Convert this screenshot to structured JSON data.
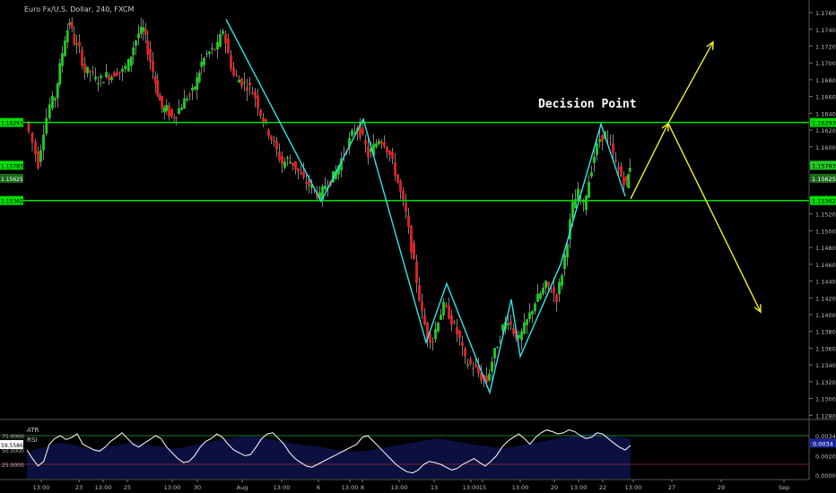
{
  "header": {
    "title": "Euro Fx/U.S. Dollar, 240, FXCM"
  },
  "colors": {
    "background": "#000000",
    "up": "#22cc22",
    "down": "#e02424",
    "level_line": "#00e000",
    "zigzag": "#2ee6e6",
    "arrow": "#f0f020",
    "rsi_line": "#ffffff",
    "atr_fill": "#0b1040",
    "axis_text": "#bbbbbb"
  },
  "annotations": {
    "decision_point": "Decision Point"
  },
  "chart_data": [
    {
      "type": "candlestick",
      "title": "Euro Fx/U.S. Dollar, 240, FXCM",
      "ylim": [
        1.1275,
        1.1775
      ],
      "y_ticks": [
        "1.17600",
        "1.17400",
        "1.17200",
        "1.17000",
        "1.16800",
        "1.16600",
        "1.16400",
        "1.16200",
        "1.16000",
        "1.15800",
        "1.15600",
        "1.15400",
        "1.15200",
        "1.15000",
        "1.14800",
        "1.14600",
        "1.14400",
        "1.14200",
        "1.14000",
        "1.13800",
        "1.13600",
        "1.13400",
        "1.13200",
        "1.13000",
        "1.12800"
      ],
      "x_ticks": [
        "13:00",
        "23",
        "13:00",
        "25",
        "13:00",
        "30",
        "Aug",
        "13:00",
        "6",
        "13:00",
        "8",
        "13:00",
        "13",
        "13:00",
        "15",
        "13:00",
        "20",
        "13:00",
        "22",
        "13:00",
        "27",
        "29",
        "Sep"
      ],
      "levels": [
        {
          "name": "upper",
          "value": 1.1629,
          "label": "1.16293"
        },
        {
          "name": "lower",
          "value": 1.1536,
          "label": "1.15362"
        }
      ],
      "price_badges": [
        {
          "label": "1.15783",
          "color": "#22cc22"
        },
        {
          "label": "1.15625",
          "color": "#22cc22"
        }
      ],
      "left_badges": [
        "1.16293",
        "1.15783",
        "1.15625",
        "1.15362"
      ],
      "zigzag": [
        [
          252,
          1.1752
        ],
        [
          358,
          1.1535
        ],
        [
          405,
          1.1633
        ],
        [
          475,
          1.1367
        ],
        [
          498,
          1.1437
        ],
        [
          546,
          1.1307
        ],
        [
          570,
          1.1418
        ],
        [
          580,
          1.135
        ],
        [
          625,
          1.146
        ],
        [
          670,
          1.1627
        ],
        [
          697,
          1.1541
        ]
      ],
      "arrows": [
        {
          "from": [
            703,
            1.1538
          ],
          "via": [
            745,
            1.1628
          ],
          "to": [
            795,
            1.1725
          ]
        },
        {
          "from": [
            745,
            1.1628
          ],
          "to": [
            848,
            1.1403
          ]
        }
      ],
      "series": [
        {
          "name": "path",
          "points": [
            [
              30,
              1.163
            ],
            [
              38,
              1.1605
            ],
            [
              44,
              1.158
            ],
            [
              50,
              1.162
            ],
            [
              57,
              1.165
            ],
            [
              63,
              1.166
            ],
            [
              68,
              1.1695
            ],
            [
              74,
              1.173
            ],
            [
              79,
              1.175
            ],
            [
              84,
              1.1725
            ],
            [
              90,
              1.1715
            ],
            [
              96,
              1.169
            ],
            [
              102,
              1.169
            ],
            [
              108,
              1.168
            ],
            [
              114,
              1.168
            ],
            [
              120,
              1.1685
            ],
            [
              126,
              1.1685
            ],
            [
              132,
              1.169
            ],
            [
              138,
              1.169
            ],
            [
              145,
              1.17
            ],
            [
              150,
              1.172
            ],
            [
              156,
              1.1735
            ],
            [
              161,
              1.174
            ],
            [
              166,
              1.1715
            ],
            [
              172,
              1.169
            ],
            [
              177,
              1.1665
            ],
            [
              182,
              1.1645
            ],
            [
              187,
              1.1645
            ],
            [
              193,
              1.1635
            ],
            [
              198,
              1.164
            ],
            [
              204,
              1.165
            ],
            [
              210,
              1.166
            ],
            [
              216,
              1.1665
            ],
            [
              221,
              1.168
            ],
            [
              226,
              1.17
            ],
            [
              232,
              1.171
            ],
            [
              238,
              1.1715
            ],
            [
              244,
              1.172
            ],
            [
              250,
              1.174
            ],
            [
              256,
              1.171
            ],
            [
              262,
              1.1685
            ],
            [
              268,
              1.168
            ],
            [
              274,
              1.1675
            ],
            [
              280,
              1.167
            ],
            [
              286,
              1.166
            ],
            [
              292,
              1.164
            ],
            [
              298,
              1.1625
            ],
            [
              304,
              1.161
            ],
            [
              310,
              1.1595
            ],
            [
              316,
              1.158
            ],
            [
              322,
              1.1585
            ],
            [
              328,
              1.158
            ],
            [
              334,
              1.157
            ],
            [
              340,
              1.156
            ],
            [
              346,
              1.1555
            ],
            [
              352,
              1.1548
            ],
            [
              358,
              1.154
            ],
            [
              364,
              1.1555
            ],
            [
              370,
              1.156
            ],
            [
              376,
              1.157
            ],
            [
              382,
              1.1585
            ],
            [
              388,
              1.16
            ],
            [
              394,
              1.1615
            ],
            [
              400,
              1.1625
            ],
            [
              406,
              1.161
            ],
            [
              412,
              1.159
            ],
            [
              418,
              1.16
            ],
            [
              424,
              1.161
            ],
            [
              430,
              1.1605
            ],
            [
              436,
              1.159
            ],
            [
              442,
              1.157
            ],
            [
              448,
              1.1545
            ],
            [
              454,
              1.152
            ],
            [
              460,
              1.148
            ],
            [
              466,
              1.144
            ],
            [
              472,
              1.14
            ],
            [
              478,
              1.1375
            ],
            [
              484,
              1.137
            ],
            [
              490,
              1.1395
            ],
            [
              496,
              1.141
            ],
            [
              502,
              1.14
            ],
            [
              508,
              1.1385
            ],
            [
              514,
              1.137
            ],
            [
              520,
              1.1345
            ],
            [
              526,
              1.134
            ],
            [
              532,
              1.1335
            ],
            [
              538,
              1.1325
            ],
            [
              544,
              1.132
            ],
            [
              550,
              1.1345
            ],
            [
              556,
              1.1365
            ],
            [
              562,
              1.1385
            ],
            [
              568,
              1.1395
            ],
            [
              574,
              1.138
            ],
            [
              580,
              1.137
            ],
            [
              586,
              1.1385
            ],
            [
              592,
              1.14
            ],
            [
              598,
              1.1415
            ],
            [
              604,
              1.1425
            ],
            [
              610,
              1.1435
            ],
            [
              616,
              1.143
            ],
            [
              622,
              1.142
            ],
            [
              628,
              1.145
            ],
            [
              634,
              1.149
            ],
            [
              640,
              1.153
            ],
            [
              646,
              1.1545
            ],
            [
              652,
              1.153
            ],
            [
              658,
              1.156
            ],
            [
              664,
              1.159
            ],
            [
              670,
              1.161
            ],
            [
              676,
              1.1615
            ],
            [
              682,
              1.16
            ],
            [
              688,
              1.158
            ],
            [
              694,
              1.1565
            ],
            [
              700,
              1.1555
            ],
            [
              703,
              1.1578
            ]
          ]
        }
      ]
    },
    {
      "type": "line",
      "title": "",
      "legend": [
        "ATR",
        "RSI"
      ],
      "y_ticks": [
        "75.0000",
        "50.0000",
        "25.0000"
      ],
      "right_ticks": [
        "0.0034",
        "0.0020",
        "0.0000"
      ],
      "badges": [
        {
          "label": "59.5586"
        },
        {
          "label": "0.0034"
        }
      ],
      "levels": [
        75,
        25
      ],
      "ylim": [
        0,
        100
      ],
      "series": [
        {
          "name": "RSI",
          "values": [
            50,
            35,
            22,
            30,
            60,
            70,
            75,
            68,
            72,
            78,
            60,
            55,
            50,
            48,
            55,
            65,
            72,
            80,
            70,
            60,
            55,
            62,
            68,
            75,
            70,
            55,
            45,
            35,
            28,
            30,
            40,
            55,
            65,
            70,
            78,
            72,
            60,
            50,
            45,
            40,
            42,
            55,
            70,
            78,
            80,
            70,
            60,
            45,
            35,
            28,
            22,
            20,
            25,
            30,
            35,
            40,
            45,
            50,
            55,
            60,
            72,
            75,
            65,
            55,
            45,
            35,
            25,
            18,
            12,
            10,
            15,
            25,
            30,
            28,
            25,
            20,
            15,
            18,
            25,
            30,
            35,
            28,
            22,
            30,
            40,
            55,
            65,
            72,
            78,
            70,
            60,
            72,
            80,
            85,
            82,
            78,
            80,
            85,
            82,
            75,
            70,
            72,
            80,
            78,
            70,
            62,
            55,
            50,
            58
          ]
        },
        {
          "name": "ATR",
          "values": [
            40,
            45,
            50,
            52,
            55,
            60,
            62,
            60,
            58,
            55,
            52,
            50,
            48,
            50,
            52,
            55,
            56,
            58,
            60,
            62,
            60,
            58,
            56,
            55,
            54,
            52,
            50,
            50,
            52,
            55,
            58,
            60,
            62,
            64,
            66,
            68,
            70,
            72,
            74,
            76,
            76,
            74,
            72,
            70,
            68,
            66,
            64,
            62,
            60,
            58,
            56,
            55,
            54,
            52,
            50,
            48,
            46,
            45,
            44,
            44,
            45,
            46,
            48,
            50,
            52,
            54,
            56,
            58,
            60,
            62,
            64,
            66,
            68,
            70,
            70,
            68,
            66,
            64,
            62,
            60,
            58,
            56,
            55,
            54,
            52,
            50,
            52,
            54,
            56,
            58,
            60,
            62,
            64,
            66,
            68,
            70,
            72,
            74,
            76,
            78,
            80,
            82,
            82,
            80,
            78,
            76,
            74,
            72,
            70
          ]
        }
      ]
    }
  ]
}
